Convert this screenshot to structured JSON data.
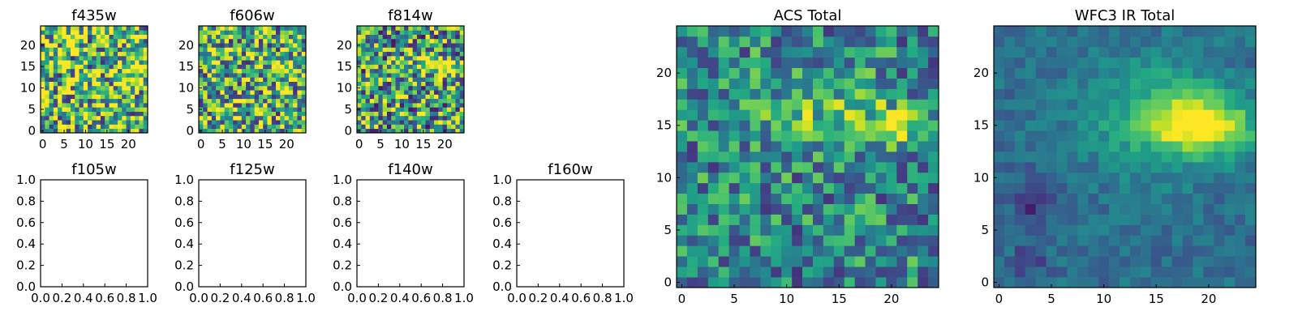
{
  "figure": {
    "background": "#ffffff",
    "colormap": "viridis"
  },
  "chart_data": [
    {
      "type": "heatmap",
      "title": "f435w",
      "colormap": "viridis",
      "xlim": [
        0,
        24
      ],
      "ylim": [
        0,
        24
      ],
      "grid": false,
      "xticks": [
        "0",
        "5",
        "10",
        "15",
        "20"
      ],
      "yticks": [
        "0",
        "5",
        "10",
        "15",
        "20"
      ],
      "cells": 25,
      "noise": 0.55,
      "base": 0.68,
      "seed": 11,
      "blobs": [
        {
          "x": 20,
          "y": 15,
          "amp": 0.25,
          "sx": 2.5,
          "sy": 1.5
        }
      ]
    },
    {
      "type": "heatmap",
      "title": "f606w",
      "colormap": "viridis",
      "xlim": [
        0,
        24
      ],
      "ylim": [
        0,
        24
      ],
      "grid": false,
      "xticks": [
        "0",
        "5",
        "10",
        "15",
        "20"
      ],
      "yticks": [
        "0",
        "5",
        "10",
        "15",
        "20"
      ],
      "cells": 25,
      "noise": 0.5,
      "base": 0.62,
      "seed": 23,
      "blobs": [
        {
          "x": 20,
          "y": 15,
          "amp": 0.35,
          "sx": 2.3,
          "sy": 1.3
        }
      ]
    },
    {
      "type": "heatmap",
      "title": "f814w",
      "colormap": "viridis",
      "xlim": [
        0,
        24
      ],
      "ylim": [
        0,
        24
      ],
      "grid": false,
      "xticks": [
        "0",
        "5",
        "10",
        "15",
        "20"
      ],
      "yticks": [
        "0",
        "5",
        "10",
        "15",
        "20"
      ],
      "cells": 25,
      "noise": 0.5,
      "base": 0.55,
      "seed": 37,
      "blobs": [
        {
          "x": 20,
          "y": 15,
          "amp": 0.45,
          "sx": 3.0,
          "sy": 1.3
        },
        {
          "x": 14,
          "y": 17,
          "amp": 0.15,
          "sx": 3.0,
          "sy": 2.0
        }
      ]
    },
    {
      "type": "empty",
      "title": "f105w",
      "xlim": [
        0,
        1
      ],
      "ylim": [
        0,
        1
      ],
      "xticks": [
        "0.0",
        "0.2",
        "0.4",
        "0.6",
        "0.8",
        "1.0"
      ],
      "yticks": [
        "0.0",
        "0.2",
        "0.4",
        "0.6",
        "0.8",
        "1.0"
      ]
    },
    {
      "type": "empty",
      "title": "f125w",
      "xlim": [
        0,
        1
      ],
      "ylim": [
        0,
        1
      ],
      "xticks": [
        "0.0",
        "0.2",
        "0.4",
        "0.6",
        "0.8",
        "1.0"
      ],
      "yticks": [
        "0.0",
        "0.2",
        "0.4",
        "0.6",
        "0.8",
        "1.0"
      ]
    },
    {
      "type": "empty",
      "title": "f140w",
      "xlim": [
        0,
        1
      ],
      "ylim": [
        0,
        1
      ],
      "xticks": [
        "0.0",
        "0.2",
        "0.4",
        "0.6",
        "0.8",
        "1.0"
      ],
      "yticks": [
        "0.0",
        "0.2",
        "0.4",
        "0.6",
        "0.8",
        "1.0"
      ]
    },
    {
      "type": "empty",
      "title": "f160w",
      "xlim": [
        0,
        1
      ],
      "ylim": [
        0,
        1
      ],
      "xticks": [
        "0.0",
        "0.2",
        "0.4",
        "0.6",
        "0.8",
        "1.0"
      ],
      "yticks": [
        "0.0",
        "0.2",
        "0.4",
        "0.6",
        "0.8",
        "1.0"
      ]
    },
    {
      "type": "heatmap",
      "title": "ACS Total",
      "colormap": "viridis",
      "xlim": [
        0,
        24
      ],
      "ylim": [
        0,
        24
      ],
      "grid": false,
      "xticks": [
        "0",
        "5",
        "10",
        "15",
        "20"
      ],
      "yticks": [
        "0",
        "5",
        "10",
        "15",
        "20"
      ],
      "cells": 25,
      "noise": 0.32,
      "base": 0.46,
      "seed": 53,
      "blobs": [
        {
          "x": 20.5,
          "y": 14.8,
          "amp": 0.55,
          "sx": 2.0,
          "sy": 1.3
        },
        {
          "x": 13,
          "y": 17,
          "amp": 0.25,
          "sx": 4.0,
          "sy": 2.5
        }
      ]
    },
    {
      "type": "heatmap",
      "title": "WFC3 IR Total",
      "colormap": "viridis",
      "xlim": [
        0,
        24
      ],
      "ylim": [
        0,
        24
      ],
      "grid": false,
      "xticks": [
        "0",
        "5",
        "10",
        "15",
        "20"
      ],
      "yticks": [
        "0",
        "5",
        "10",
        "15",
        "20"
      ],
      "cells": 25,
      "noise": 0.1,
      "base": 0.36,
      "seed": 71,
      "blobs": [
        {
          "x": 19.5,
          "y": 15.0,
          "amp": 0.62,
          "sx": 3.2,
          "sy": 1.8
        },
        {
          "x": 15,
          "y": 16,
          "amp": 0.28,
          "sx": 5.0,
          "sy": 4.0
        }
      ],
      "dips": [
        {
          "x": 3,
          "y": 8,
          "amp": 0.25,
          "sx": 1.2,
          "sy": 1.5
        },
        {
          "x": 3,
          "y": 2,
          "amp": 0.22,
          "sx": 1.2,
          "sy": 0.9
        }
      ]
    }
  ]
}
